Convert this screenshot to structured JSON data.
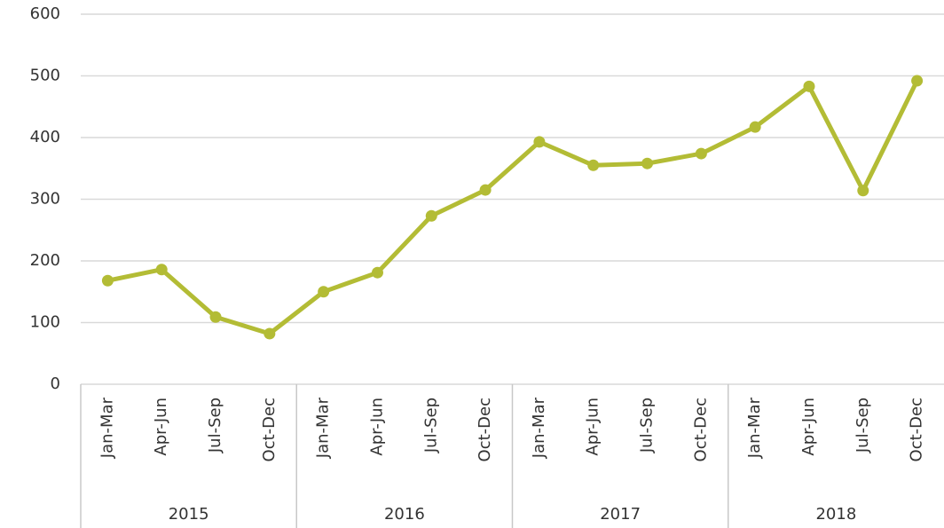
{
  "chart_data": {
    "type": "line",
    "categories": [
      "Jan-Mar",
      "Apr-Jun",
      "Jul-Sep",
      "Oct-Dec",
      "Jan-Mar",
      "Apr-Jun",
      "Jul-Sep",
      "Oct-Dec",
      "Jan-Mar",
      "Apr-Jun",
      "Jul-Sep",
      "Oct-Dec",
      "Jan-Mar",
      "Apr-Jun",
      "Jul-Sep",
      "Oct-Dec"
    ],
    "groups": [
      "2015",
      "2016",
      "2017",
      "2018"
    ],
    "values": [
      168,
      186,
      109,
      82,
      150,
      181,
      273,
      315,
      393,
      355,
      358,
      374,
      417,
      483,
      314,
      492
    ],
    "color": "#b3bc35",
    "ylim": [
      0,
      600
    ],
    "yticks": [
      0,
      100,
      200,
      300,
      400,
      500,
      600
    ],
    "grid": true
  }
}
